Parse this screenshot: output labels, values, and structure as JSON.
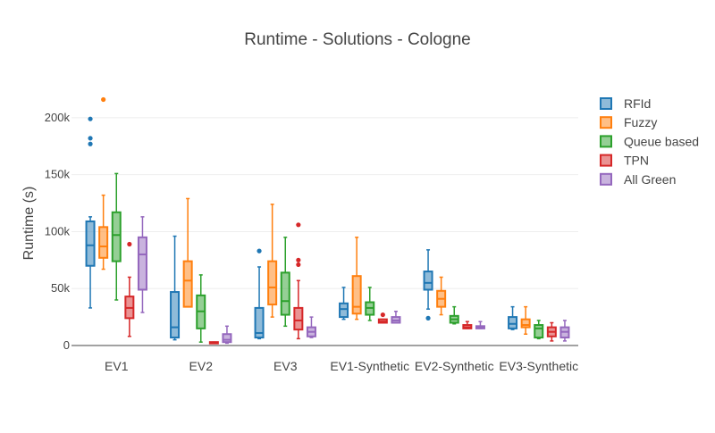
{
  "chart_data": {
    "type": "box",
    "title": "Runtime - Solutions - Cologne",
    "ylabel": "Runtime (s)",
    "xlabel": "",
    "ylim": [
      0,
      225000
    ],
    "yticks": [
      0,
      50000,
      100000,
      150000,
      200000
    ],
    "ytick_labels": [
      "0",
      "50k",
      "100k",
      "150k",
      "200k"
    ],
    "grid": true,
    "legend_position": "right",
    "categories": [
      "EV1",
      "EV2",
      "EV3",
      "EV1-Synthetic",
      "EV2-Synthetic",
      "EV3-Synthetic"
    ],
    "series": [
      {
        "name": "RFId",
        "color": "#1f77b4",
        "boxes": [
          {
            "min": 33000,
            "q1": 70000,
            "median": 88000,
            "q3": 109000,
            "max": 113000,
            "outliers": [
              177000,
              182000,
              199000
            ]
          },
          {
            "min": 5000,
            "q1": 7000,
            "median": 16000,
            "q3": 47000,
            "max": 96000,
            "outliers": []
          },
          {
            "min": 6000,
            "q1": 7000,
            "median": 11000,
            "q3": 33000,
            "max": 69000,
            "outliers": [
              83000
            ]
          },
          {
            "min": 23000,
            "q1": 25000,
            "median": 32000,
            "q3": 37000,
            "max": 51000,
            "outliers": []
          },
          {
            "min": 32000,
            "q1": 49000,
            "median": 55000,
            "q3": 65000,
            "max": 84000,
            "outliers": [
              24000
            ]
          },
          {
            "min": 14000,
            "q1": 15000,
            "median": 19000,
            "q3": 25000,
            "max": 34000,
            "outliers": []
          }
        ]
      },
      {
        "name": "Fuzzy",
        "color": "#ff7f0e",
        "boxes": [
          {
            "min": 67000,
            "q1": 77000,
            "median": 87000,
            "q3": 104000,
            "max": 132000,
            "outliers": [
              216000
            ]
          },
          {
            "min": 34000,
            "q1": 34000,
            "median": 57000,
            "q3": 74000,
            "max": 129000,
            "outliers": []
          },
          {
            "min": 25000,
            "q1": 36000,
            "median": 51000,
            "q3": 74000,
            "max": 124000,
            "outliers": []
          },
          {
            "min": 23000,
            "q1": 28000,
            "median": 34000,
            "q3": 61000,
            "max": 95000,
            "outliers": []
          },
          {
            "min": 27000,
            "q1": 34000,
            "median": 41000,
            "q3": 48000,
            "max": 60000,
            "outliers": []
          },
          {
            "min": 10000,
            "q1": 16000,
            "median": 18000,
            "q3": 23000,
            "max": 34000,
            "outliers": []
          }
        ]
      },
      {
        "name": "Queue based",
        "color": "#2ca02c",
        "boxes": [
          {
            "min": 40000,
            "q1": 74000,
            "median": 97000,
            "q3": 117000,
            "max": 151000,
            "outliers": []
          },
          {
            "min": 3000,
            "q1": 15000,
            "median": 30000,
            "q3": 44000,
            "max": 62000,
            "outliers": []
          },
          {
            "min": 17000,
            "q1": 27000,
            "median": 39000,
            "q3": 64000,
            "max": 95000,
            "outliers": []
          },
          {
            "min": 22000,
            "q1": 27000,
            "median": 33000,
            "q3": 38000,
            "max": 51000,
            "outliers": []
          },
          {
            "min": 19000,
            "q1": 20000,
            "median": 23000,
            "q3": 26000,
            "max": 34000,
            "outliers": []
          },
          {
            "min": 6000,
            "q1": 7000,
            "median": 15000,
            "q3": 18000,
            "max": 22000,
            "outliers": []
          }
        ]
      },
      {
        "name": "TPN",
        "color": "#d62728",
        "boxes": [
          {
            "min": 8000,
            "q1": 24000,
            "median": 33000,
            "q3": 43000,
            "max": 60000,
            "outliers": [
              89000
            ]
          },
          {
            "min": 2000,
            "q1": 2000,
            "median": 2500,
            "q3": 3000,
            "max": 3000,
            "outliers": []
          },
          {
            "min": 6000,
            "q1": 14000,
            "median": 22000,
            "q3": 33000,
            "max": 57000,
            "outliers": [
              71000,
              75000,
              106000
            ]
          },
          {
            "min": 20000,
            "q1": 20000,
            "median": 21000,
            "q3": 23000,
            "max": 23000,
            "outliers": [
              27000
            ]
          },
          {
            "min": 15000,
            "q1": 15000,
            "median": 16000,
            "q3": 18000,
            "max": 21000,
            "outliers": []
          },
          {
            "min": 4000,
            "q1": 8000,
            "median": 12000,
            "q3": 16000,
            "max": 20000,
            "outliers": []
          }
        ]
      },
      {
        "name": "All Green",
        "color": "#9467bd",
        "boxes": [
          {
            "min": 29000,
            "q1": 49000,
            "median": 80000,
            "q3": 95000,
            "max": 113000,
            "outliers": []
          },
          {
            "min": 2000,
            "q1": 3000,
            "median": 5000,
            "q3": 10000,
            "max": 17000,
            "outliers": []
          },
          {
            "min": 7000,
            "q1": 8000,
            "median": 12000,
            "q3": 16000,
            "max": 25000,
            "outliers": []
          },
          {
            "min": 20000,
            "q1": 20000,
            "median": 22000,
            "q3": 25000,
            "max": 30000,
            "outliers": []
          },
          {
            "min": 15000,
            "q1": 15000,
            "median": 16000,
            "q3": 17000,
            "max": 21000,
            "outliers": []
          },
          {
            "min": 4000,
            "q1": 7000,
            "median": 12000,
            "q3": 16000,
            "max": 22000,
            "outliers": []
          }
        ]
      }
    ]
  }
}
